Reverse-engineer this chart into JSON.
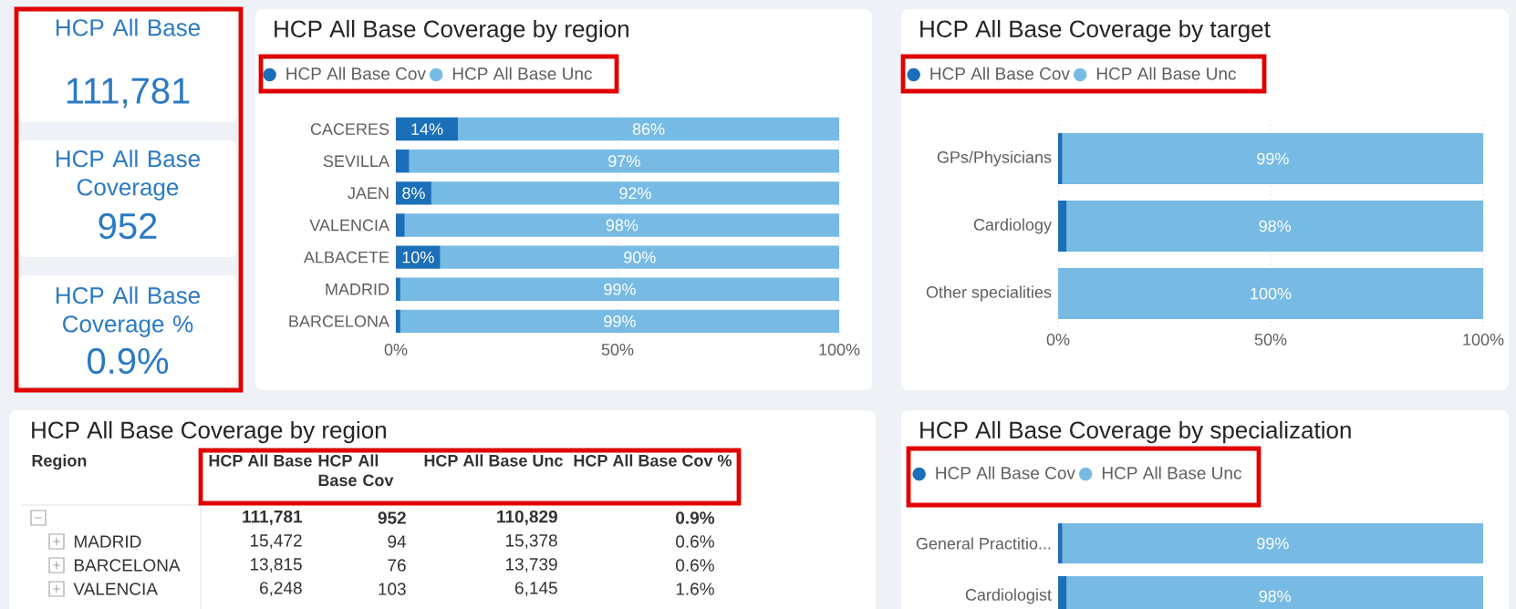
{
  "chart_data": [
    {
      "type": "other",
      "annotations": [
        "HCP All Base",
        "111,781",
        "HCP All Base Coverage",
        "952",
        "HCP All Base Coverage %",
        "0.9%"
      ]
    },
    {
      "type": "bar",
      "title": "HCP All Base Coverage by region",
      "orientation": "horizontal",
      "stacked": true,
      "categories": [
        "CACERES",
        "SEVILLA",
        "JAEN",
        "VALENCIA",
        "ALBACETE",
        "MADRID",
        "BARCELONA"
      ],
      "series": [
        {
          "name": "HCP All Base Cov",
          "color": "#1a6fb8",
          "values": [
            14,
            3,
            8,
            2,
            10,
            1,
            1
          ],
          "value_labels": [
            "14%",
            null,
            "8%",
            null,
            "10%",
            null,
            null
          ]
        },
        {
          "name": "HCP All Base Unc",
          "color": "#77bbe4",
          "values": [
            86,
            97,
            92,
            98,
            90,
            99,
            99
          ],
          "value_labels": [
            "86%",
            "97%",
            "92%",
            "98%",
            "90%",
            "99%",
            "99%"
          ]
        }
      ],
      "xlim": [
        0,
        100
      ],
      "xticks": [
        {
          "value": 0,
          "label": "0%"
        },
        {
          "value": 50,
          "label": "50%"
        },
        {
          "value": 100,
          "label": "100%"
        }
      ],
      "grid": "x",
      "legend": "top left"
    },
    {
      "type": "bar",
      "title": "HCP All Base Coverage by target",
      "orientation": "horizontal",
      "stacked": true,
      "categories": [
        "GPs/Physicians",
        "Cardiology",
        "Other specialities"
      ],
      "series": [
        {
          "name": "HCP All Base Cov",
          "color": "#1a6fb8",
          "values": [
            1,
            2,
            0
          ]
        },
        {
          "name": "HCP All Base Unc",
          "color": "#77bbe4",
          "values": [
            99,
            98,
            100
          ],
          "value_labels": [
            "99%",
            "98%",
            "100%"
          ]
        }
      ],
      "xlim": [
        0,
        100
      ],
      "xticks": [
        {
          "value": 0,
          "label": "0%"
        },
        {
          "value": 50,
          "label": "50%"
        },
        {
          "value": 100,
          "label": "100%"
        }
      ],
      "grid": "x",
      "legend": "top left"
    },
    {
      "type": "other",
      "title": "HCP All Base Coverage by region",
      "annotations": [
        "Region",
        "HCP All Base",
        "HCP All Base Cov",
        "HCP All Base Unc",
        "HCP All Base Cov %",
        "111,781",
        "952",
        "110,829",
        "0.9%",
        "MADRID",
        "15,472",
        "94",
        "15,378",
        "0.6%",
        "BARCELONA",
        "13,815",
        "76",
        "13,739",
        "0.6%",
        "VALENCIA",
        "6,248",
        "103",
        "6,145",
        "1.6%"
      ]
    },
    {
      "type": "bar",
      "title": "HCP All Base Coverage by specialization",
      "orientation": "horizontal",
      "stacked": true,
      "categories": [
        "General Practitio...",
        "Cardiologist"
      ],
      "series": [
        {
          "name": "HCP All Base Cov",
          "color": "#1a6fb8",
          "values": [
            1,
            2
          ]
        },
        {
          "name": "HCP All Base Unc",
          "color": "#77bbe4",
          "values": [
            99,
            98
          ],
          "value_labels": [
            "99%",
            "98%"
          ]
        }
      ],
      "xlim": [
        0,
        100
      ],
      "legend": "top left"
    }
  ]
}
